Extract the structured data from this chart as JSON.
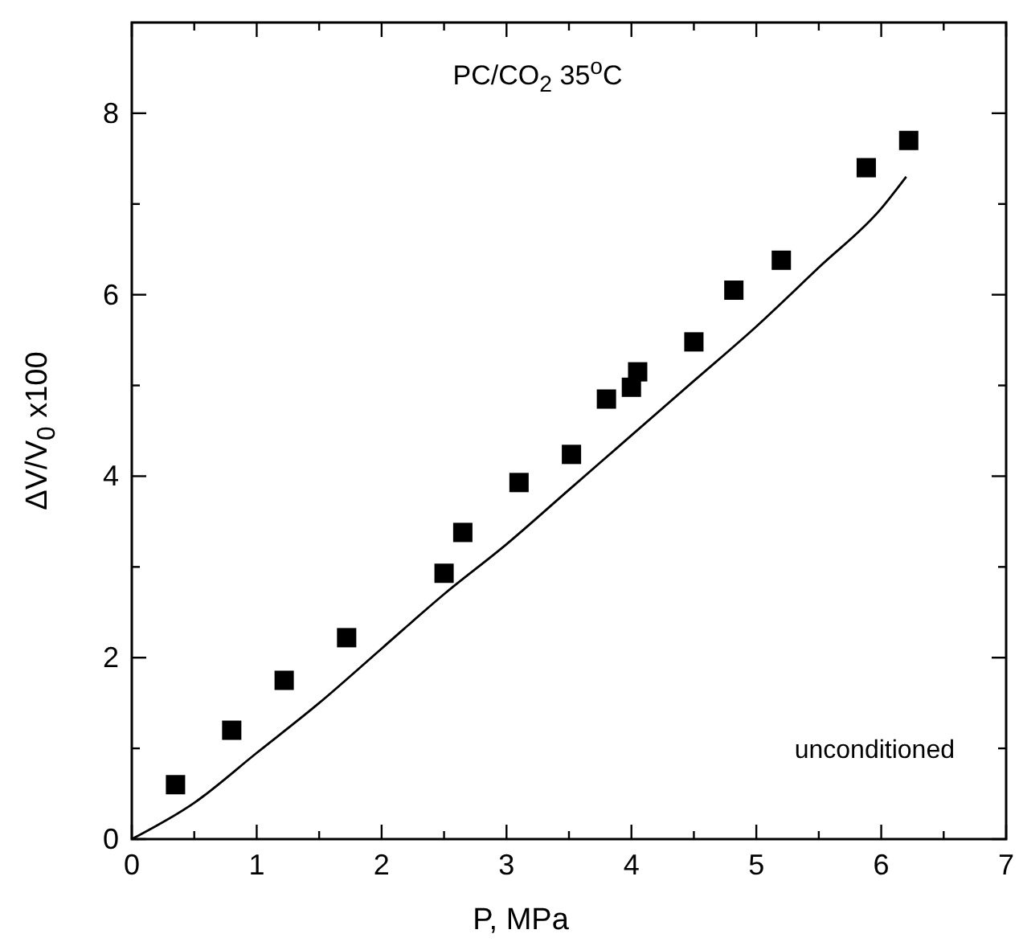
{
  "chart_data": {
    "type": "scatter",
    "title": "PC/CO$_{2}$ 35$^{o}$C",
    "xlabel": "P, MPa",
    "ylabel": "ΔV/V$_{0}$ x100",
    "annotations": [
      "unconditioned"
    ],
    "xlim": [
      0,
      7
    ],
    "ylim": [
      0,
      9
    ],
    "xticks": [
      0,
      {
        "value": 0.5,
        "label": null
      },
      1,
      {
        "value": 1.5,
        "label": null
      },
      2,
      {
        "value": 2.5,
        "label": null
      },
      3,
      {
        "value": 3.5,
        "label": null
      },
      4,
      {
        "value": 4.5,
        "label": null
      },
      5,
      {
        "value": 5.5,
        "label": null
      },
      6,
      {
        "value": 6.5,
        "label": null
      },
      7
    ],
    "yticks": [
      0,
      {
        "value": 1,
        "label": null
      },
      2,
      {
        "value": 3,
        "label": null
      },
      4,
      {
        "value": 5,
        "label": null
      },
      6,
      {
        "value": 7,
        "label": null
      },
      8
    ],
    "grid": false,
    "legend": false,
    "series": [
      {
        "type": "scatter",
        "color": "#000000",
        "marker": "square",
        "x": [
          0.35,
          0.8,
          1.22,
          1.72,
          2.5,
          2.65,
          3.1,
          3.52,
          3.8,
          4.0,
          4.05,
          4.5,
          4.82,
          5.2,
          5.88,
          6.22
        ],
        "values": [
          0.6,
          1.2,
          1.75,
          2.22,
          2.93,
          3.38,
          3.93,
          4.24,
          4.85,
          4.98,
          5.15,
          5.48,
          6.05,
          6.38,
          7.4,
          7.7
        ]
      },
      {
        "type": "line",
        "color": "#000000",
        "marker": "none",
        "line_style": "solid",
        "x": [
          0,
          0.5,
          1,
          1.5,
          2,
          2.5,
          3,
          3.5,
          4,
          4.5,
          5,
          5.5,
          6,
          6.2
        ],
        "values": [
          0,
          0.4,
          0.95,
          1.5,
          2.1,
          2.7,
          3.25,
          3.85,
          4.45,
          5.05,
          5.65,
          6.3,
          6.95,
          7.3
        ]
      }
    ]
  }
}
